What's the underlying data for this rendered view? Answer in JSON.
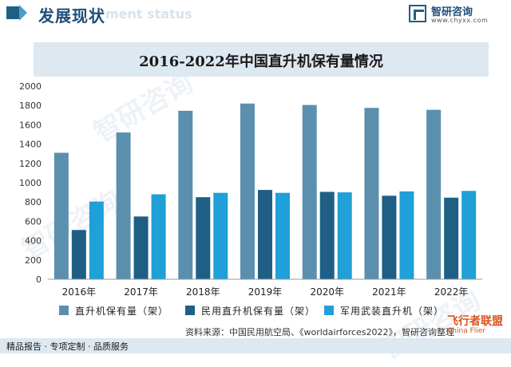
{
  "header": {
    "title": "发展现状",
    "ghost_text": "ment status"
  },
  "logo": {
    "name": "智研咨询",
    "url": "www.chyxx.com"
  },
  "watermarks": [
    "智研咨询",
    "智研咨询",
    "智研咨询"
  ],
  "chart_data": {
    "type": "bar",
    "title": "2016-2022年中国直升机保有量情况",
    "categories": [
      "2016年",
      "2017年",
      "2018年",
      "2019年",
      "2020年",
      "2021年",
      "2022年"
    ],
    "series": [
      {
        "name": "直升机保有量（架）",
        "color": "#5b8fae",
        "values": [
          1310,
          1520,
          1745,
          1820,
          1805,
          1775,
          1755
        ]
      },
      {
        "name": "民用直升机保有量（架）",
        "color": "#1f5f86",
        "values": [
          510,
          650,
          850,
          925,
          905,
          865,
          845
        ]
      },
      {
        "name": "军用武装直升机（架）",
        "color": "#1fa0d8",
        "values": [
          805,
          880,
          895,
          895,
          900,
          910,
          915
        ]
      }
    ],
    "ylim": [
      0,
      2000
    ],
    "yticks": [
      0,
      200,
      400,
      600,
      800,
      1000,
      1200,
      1400,
      1600,
      1800,
      2000
    ],
    "grid": false,
    "legend_position": "bottom"
  },
  "source": "资料来源：中国民用航空局、《worldairforces2022》，智研咨询整理",
  "footer": "精品报告 · 专项定制 · 品质服务",
  "corner_badge": {
    "text": "飞行者联盟",
    "sub": "China Flier"
  }
}
